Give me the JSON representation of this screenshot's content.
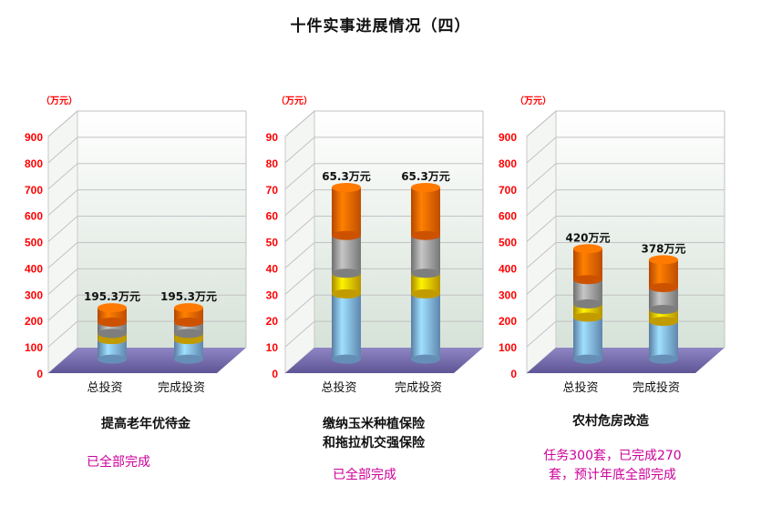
{
  "title": "十件实事进展情况（四）",
  "colors": {
    "axis_tick": "#ff0000",
    "bar_segments": [
      "#7fb3e6",
      "#f2c200",
      "#9e9e9e",
      "#ff6600"
    ],
    "floor": "#7a6fb0",
    "status_text": "#cc0099"
  },
  "panels": [
    {
      "caption_lines": [
        "提高老年优待金"
      ],
      "status_lines": [
        "已全部完成"
      ]
    },
    {
      "caption_lines": [
        "缴纳玉米种植保险",
        "和拖拉机交强保险"
      ],
      "status_lines": [
        "已全部完成"
      ]
    },
    {
      "caption_lines": [
        "农村危房改造"
      ],
      "status_lines": [
        "任务300套，已完成270",
        "套，预计年底全部完成"
      ]
    }
  ],
  "chart_data": [
    {
      "type": "bar",
      "unit_label": "（万元）",
      "categories": [
        "总投资",
        "完成投资"
      ],
      "values": [
        195.3,
        195.3
      ],
      "value_labels": [
        "195.3万元",
        "195.3万元"
      ],
      "ylim": [
        0,
        900
      ],
      "yticks": [
        0,
        100,
        200,
        300,
        400,
        500,
        600,
        700,
        800,
        900
      ]
    },
    {
      "type": "bar",
      "unit_label": "（万元）",
      "categories": [
        "总投资",
        "完成投资"
      ],
      "values": [
        65.3,
        65.3
      ],
      "value_labels": [
        "65.3万元",
        "65.3万元"
      ],
      "ylim": [
        0,
        90
      ],
      "yticks": [
        0,
        10,
        20,
        30,
        40,
        50,
        60,
        70,
        80,
        90
      ]
    },
    {
      "type": "bar",
      "unit_label": "（万元）",
      "categories": [
        "总投资",
        "完成投资"
      ],
      "values": [
        420,
        378
      ],
      "value_labels": [
        "420万元",
        "378万元"
      ],
      "ylim": [
        0,
        900
      ],
      "yticks": [
        0,
        100,
        200,
        300,
        400,
        500,
        600,
        700,
        800,
        900
      ]
    }
  ]
}
